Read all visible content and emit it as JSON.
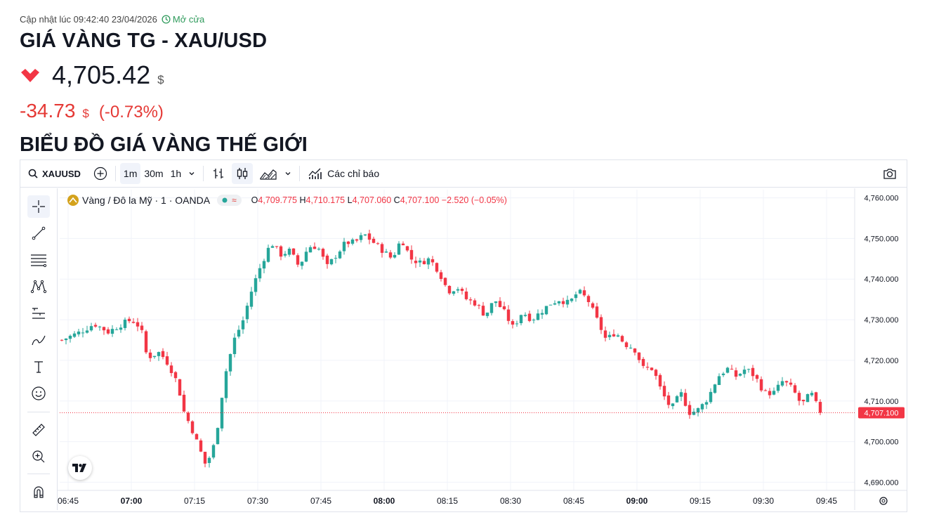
{
  "header": {
    "update_label": "Cập nhật lúc 09:42:40 23/04/2026",
    "market_status": "Mở cửa",
    "title": "GIÁ VÀNG TG - XAU/USD",
    "price": "4,705.42",
    "currency": "$",
    "change": "-34.73",
    "change_pct": "(-0.73%)",
    "direction": "down"
  },
  "section_title": "BIỂU ĐỒ GIÁ VÀNG THẾ GIỚI",
  "toolbar": {
    "symbol": "XAUUSD",
    "intervals": [
      "1m",
      "30m",
      "1h"
    ],
    "active_interval": "1m",
    "indicators_label": "Các chỉ báo"
  },
  "legend": {
    "name": "Vàng / Đô la Mỹ · 1 · OANDA",
    "o_label": "O",
    "o": "4,709.775",
    "h_label": "H",
    "h": "4,710.175",
    "l_label": "L",
    "l": "4,707.060",
    "c_label": "C",
    "c": "4,707.100",
    "change": "−2.520 (−0.05%)"
  },
  "colors": {
    "up": "#26a69a",
    "down": "#f23645",
    "accent": "#2962ff",
    "open_status": "#2e9a5b"
  },
  "chart_data": {
    "type": "candlestick",
    "ylim": [
      4688,
      4762
    ],
    "y_ticks": [
      "4,760.000",
      "4,750.000",
      "4,740.000",
      "4,730.000",
      "4,720.000",
      "4,710.000",
      "4,700.000",
      "4,690.000"
    ],
    "y_tick_values": [
      4760,
      4750,
      4740,
      4730,
      4720,
      4710,
      4700,
      4690
    ],
    "x_ticks": [
      "06:45",
      "07:00",
      "07:15",
      "07:30",
      "07:45",
      "08:00",
      "08:15",
      "08:30",
      "08:45",
      "09:00",
      "09:15",
      "09:30",
      "09:45"
    ],
    "x_tick_bold": [
      false,
      true,
      false,
      false,
      false,
      true,
      false,
      false,
      false,
      true,
      false,
      false,
      false
    ],
    "last_price": 4707.1,
    "last_price_label": "4,707.100",
    "close_path": [
      [
        0,
        4725
      ],
      [
        4,
        4727
      ],
      [
        7,
        4729
      ],
      [
        10,
        4727
      ],
      [
        13,
        4729
      ],
      [
        15,
        4730
      ],
      [
        17,
        4728
      ],
      [
        18,
        4722
      ],
      [
        19,
        4721
      ],
      [
        21,
        4722
      ],
      [
        23,
        4719
      ],
      [
        25,
        4714
      ],
      [
        26,
        4708
      ],
      [
        28,
        4703
      ],
      [
        30,
        4697
      ],
      [
        31,
        4694
      ],
      [
        33,
        4700
      ],
      [
        35,
        4716
      ],
      [
        37,
        4725
      ],
      [
        39,
        4730
      ],
      [
        41,
        4738
      ],
      [
        43,
        4744
      ],
      [
        45,
        4749
      ],
      [
        47,
        4746
      ],
      [
        49,
        4747
      ],
      [
        51,
        4743
      ],
      [
        53,
        4748
      ],
      [
        55,
        4748
      ],
      [
        57,
        4743
      ],
      [
        59,
        4746
      ],
      [
        61,
        4749
      ],
      [
        63,
        4749
      ],
      [
        65,
        4751
      ],
      [
        67,
        4749
      ],
      [
        69,
        4747
      ],
      [
        71,
        4745
      ],
      [
        73,
        4750
      ],
      [
        75,
        4745
      ],
      [
        77,
        4744
      ],
      [
        79,
        4745
      ],
      [
        81,
        4742
      ],
      [
        83,
        4737
      ],
      [
        85,
        4738
      ],
      [
        87,
        4735
      ],
      [
        89,
        4734
      ],
      [
        91,
        4731
      ],
      [
        93,
        4735
      ],
      [
        95,
        4732
      ],
      [
        97,
        4728
      ],
      [
        99,
        4732
      ],
      [
        101,
        4730
      ],
      [
        103,
        4732
      ],
      [
        105,
        4734
      ],
      [
        107,
        4735
      ],
      [
        109,
        4734
      ],
      [
        111,
        4737
      ],
      [
        113,
        4735
      ],
      [
        115,
        4730
      ],
      [
        117,
        4725
      ],
      [
        119,
        4727
      ],
      [
        121,
        4724
      ],
      [
        123,
        4723
      ],
      [
        125,
        4718
      ],
      [
        127,
        4718
      ],
      [
        129,
        4712
      ],
      [
        131,
        4708
      ],
      [
        133,
        4712
      ],
      [
        135,
        4707
      ],
      [
        137,
        4708
      ],
      [
        139,
        4711
      ],
      [
        141,
        4716
      ],
      [
        143,
        4718
      ],
      [
        145,
        4716
      ],
      [
        147,
        4718
      ],
      [
        149,
        4716
      ],
      [
        151,
        4712
      ],
      [
        153,
        4712
      ],
      [
        155,
        4715
      ],
      [
        157,
        4713
      ],
      [
        159,
        4709
      ],
      [
        161,
        4712
      ],
      [
        163,
        4707
      ]
    ]
  }
}
